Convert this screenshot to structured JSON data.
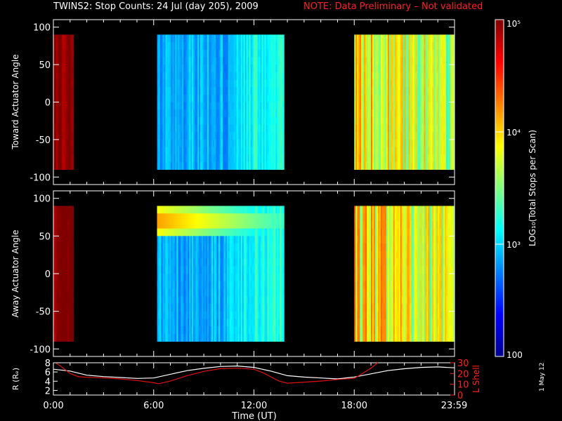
{
  "title": "TWINS2: Stop Counts: 24 Jul (day 205), 2009",
  "note": "NOTE: Data Preliminary – Not validated",
  "stamp": "1 May 12",
  "colors": {
    "note": "#ff2020",
    "r_line": "#ffffff",
    "lshell_line": "#e01010",
    "background": "#000000"
  },
  "chart_data": [
    {
      "type": "heatmap",
      "ylabel": "Toward Actuator Angle",
      "ylim": [
        -110,
        110
      ],
      "yticks": [
        100,
        50,
        0,
        -50,
        -100
      ],
      "xlim_hours": [
        0,
        24
      ],
      "data_blocks_hours": [
        [
          0.0,
          1.2
        ],
        [
          6.2,
          13.8
        ],
        [
          18.0,
          24.0
        ]
      ],
      "angle_range": [
        -90,
        90
      ],
      "log_counts_by_block": [
        5.0,
        3.05,
        3.7
      ]
    },
    {
      "type": "heatmap",
      "ylabel": "Away Actuator Angle",
      "ylim": [
        -110,
        110
      ],
      "yticks": [
        100,
        50,
        0,
        -50,
        -100
      ],
      "xlim_hours": [
        0,
        24
      ],
      "data_blocks_hours": [
        [
          0.0,
          1.2
        ],
        [
          6.2,
          13.8
        ],
        [
          18.0,
          24.0
        ]
      ],
      "angle_range": [
        -90,
        90
      ],
      "log_counts_by_block": [
        5.0,
        3.05,
        3.7
      ],
      "enhancement": {
        "angle": 70,
        "hours": [
          6.2,
          13.8
        ],
        "log_counts": 4.3
      }
    },
    {
      "type": "line",
      "ylabel_left": "R (Rₑ)",
      "ylabel_right": "L Shell",
      "ylim_left": [
        1,
        8
      ],
      "yticks_left": [
        8,
        6,
        4,
        2
      ],
      "ylim_right": [
        0,
        30
      ],
      "yticks_right": [
        30,
        20,
        10,
        0
      ],
      "xlabel": "Time (UT)",
      "xtick_labels": [
        "0:00",
        "6:00",
        "12:00",
        "18:00",
        "23:59"
      ],
      "xtick_hours": [
        0,
        6,
        12,
        18,
        23.98
      ],
      "series": [
        {
          "name": "R",
          "x": [
            0,
            1,
            2,
            3,
            4,
            5,
            6,
            7,
            8,
            9,
            10,
            11,
            12,
            13,
            14,
            15,
            16,
            17,
            18,
            19,
            20,
            21,
            22,
            23,
            24
          ],
          "values": [
            6.6,
            6.2,
            5.3,
            5.0,
            4.8,
            4.6,
            4.7,
            5.5,
            6.3,
            6.8,
            7.2,
            7.3,
            7.0,
            6.2,
            5.2,
            4.9,
            4.7,
            4.5,
            4.9,
            5.6,
            6.3,
            6.7,
            7.0,
            7.1,
            6.9
          ]
        },
        {
          "name": "L Shell",
          "x": [
            0.15,
            0.6,
            1.0,
            1.5,
            2.0,
            3.0,
            4.0,
            5.0,
            6.0,
            6.3,
            7.0,
            8.0,
            9.0,
            10.0,
            11.0,
            12.0,
            12.5,
            13.0,
            13.5,
            14.0,
            15.0,
            16.0,
            17.0,
            18.0,
            18.5,
            19.0,
            19.4
          ],
          "values": [
            30,
            25,
            20,
            17,
            16.5,
            16,
            15,
            13.5,
            11.5,
            10.5,
            13,
            18,
            22,
            24.5,
            25,
            24,
            21,
            17,
            13,
            11,
            12,
            13,
            14.5,
            15.5,
            20,
            25,
            31
          ]
        }
      ]
    },
    {
      "type": "colorbar",
      "label": "LOG₁₀(Total Stops per Scan)",
      "range": [
        100,
        100000
      ],
      "tick_labels": [
        "10⁵",
        "10⁴",
        "10³",
        "100"
      ],
      "tick_log": [
        5,
        4,
        3,
        2
      ]
    }
  ]
}
